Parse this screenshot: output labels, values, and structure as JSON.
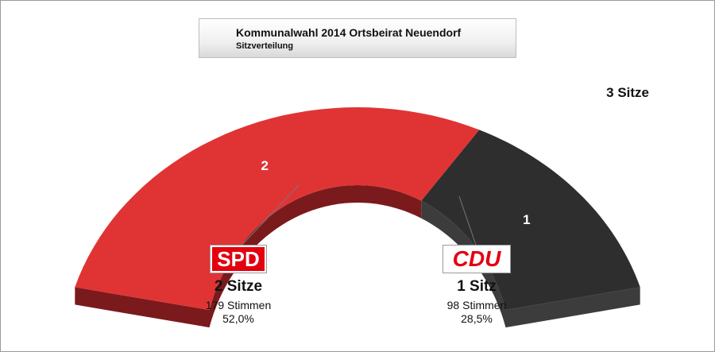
{
  "chart_data": {
    "type": "pie",
    "title": "Kommunalwahl 2014 Ortsbeirat Neuendorf",
    "subtitle": "Sitzverteilung",
    "total_label": "3 Sitze",
    "total_seats": 3,
    "series": [
      {
        "name": "SPD",
        "seats": 2,
        "seat_label": "2",
        "seats_text": "2 Sitze",
        "votes_text": "179 Stimmen",
        "percent_text": "52,0%",
        "color": "#e03434",
        "side_color": "#7a1a1c"
      },
      {
        "name": "CDU",
        "seats": 1,
        "seat_label": "1",
        "seats_text": "1 Sitz",
        "votes_text": "98 Stimmen",
        "percent_text": "28,5%",
        "color": "#2e2e2e",
        "side_color": "#3c3c3c"
      }
    ]
  }
}
